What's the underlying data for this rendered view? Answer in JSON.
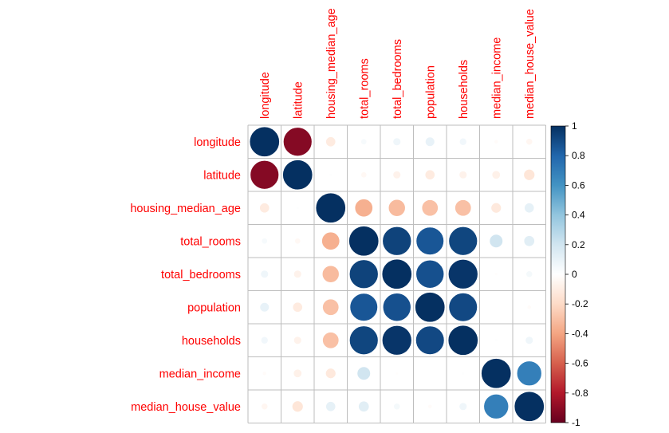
{
  "colors": {
    "label": "#ff0000",
    "grid": "#bebebe",
    "positive_strong": "#053061",
    "negative_strong": "#67001f"
  },
  "chart_data": {
    "type": "heatmap",
    "variables": [
      "longitude",
      "latitude",
      "housing_median_age",
      "total_rooms",
      "total_bedrooms",
      "population",
      "households",
      "median_income",
      "median_house_value"
    ],
    "matrix": [
      [
        1.0,
        -0.92,
        -0.11,
        0.04,
        0.07,
        0.1,
        0.06,
        -0.02,
        -0.05
      ],
      [
        -0.92,
        1.0,
        0.01,
        -0.04,
        -0.07,
        -0.11,
        -0.07,
        -0.08,
        -0.14
      ],
      [
        -0.11,
        0.01,
        1.0,
        -0.36,
        -0.32,
        -0.3,
        -0.3,
        -0.12,
        0.11
      ],
      [
        0.04,
        -0.04,
        -0.36,
        1.0,
        0.93,
        0.86,
        0.92,
        0.2,
        0.13
      ],
      [
        0.07,
        -0.07,
        -0.32,
        0.93,
        1.0,
        0.88,
        0.98,
        -0.01,
        0.05
      ],
      [
        0.1,
        -0.11,
        -0.3,
        0.86,
        0.88,
        1.0,
        0.91,
        0.0,
        -0.02
      ],
      [
        0.06,
        -0.07,
        -0.3,
        0.92,
        0.98,
        0.91,
        1.0,
        0.01,
        0.07
      ],
      [
        -0.02,
        -0.08,
        -0.12,
        0.2,
        -0.01,
        0.0,
        0.01,
        1.0,
        0.69
      ],
      [
        -0.05,
        -0.14,
        0.11,
        0.13,
        0.05,
        -0.02,
        0.07,
        0.69,
        1.0
      ]
    ],
    "legend": {
      "range": [
        -1,
        1
      ],
      "placement": "right",
      "ticks": [
        "1",
        "0.8",
        "0.6",
        "0.4",
        "0.2",
        "0",
        "-0.2",
        "-0.4",
        "-0.6",
        "-0.8",
        "-1"
      ]
    }
  }
}
